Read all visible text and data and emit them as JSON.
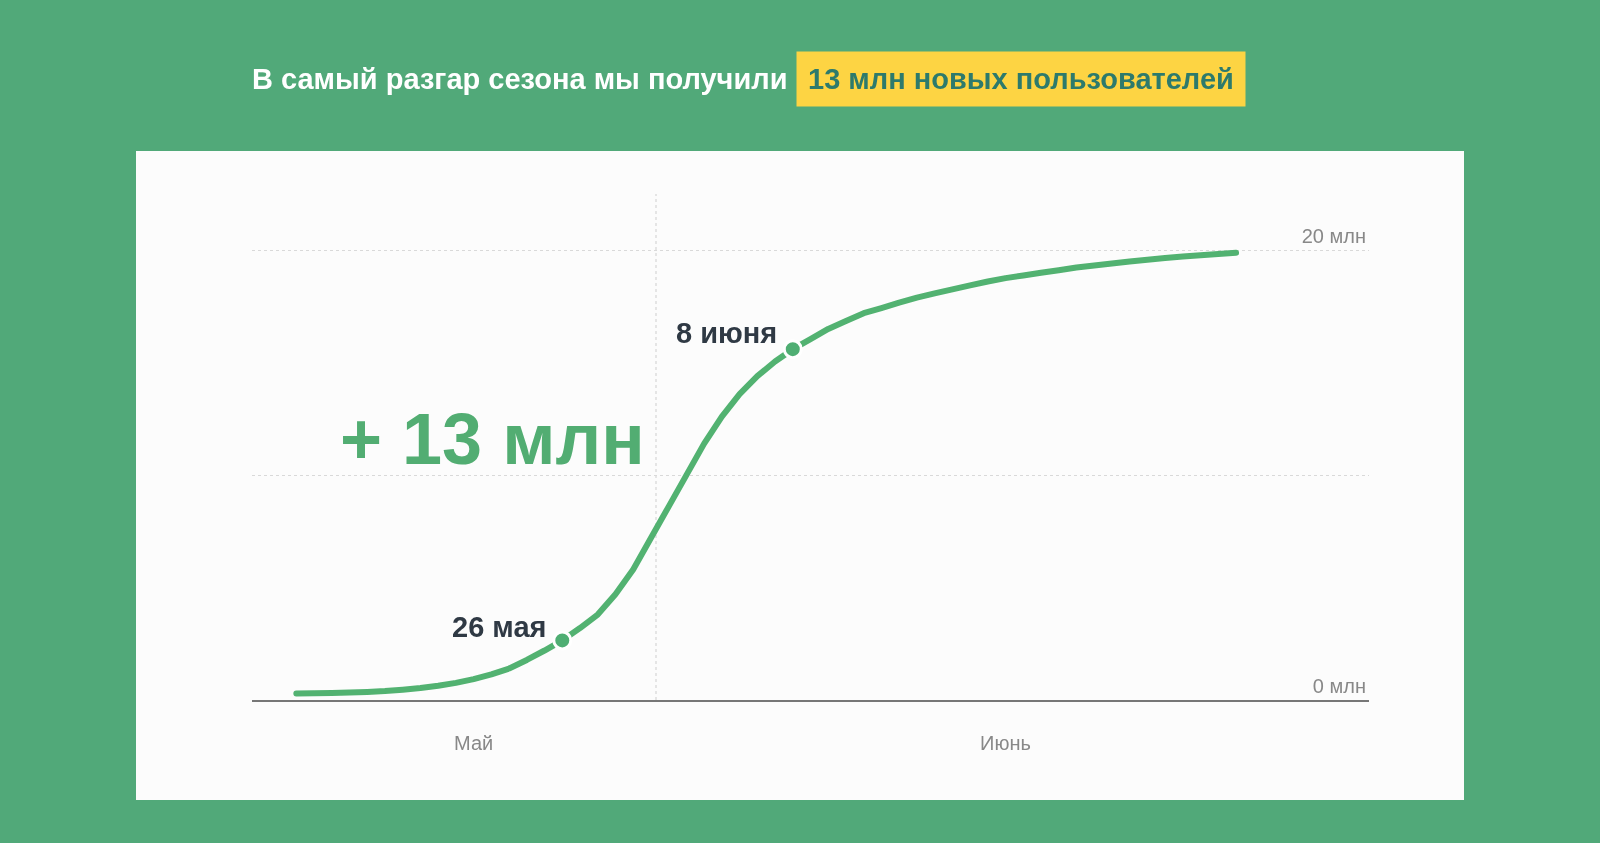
{
  "chart_data": {
    "type": "line",
    "title": "В самый разгар сезона мы получили",
    "subtitle": "13 млн новых пользователей",
    "categories": [
      null,
      null,
      null,
      null,
      null,
      null,
      null,
      null,
      null,
      null,
      null,
      null,
      "Май",
      null,
      null,
      null,
      null,
      null,
      null,
      null,
      null,
      null,
      null,
      null,
      null,
      null,
      null,
      null,
      null,
      null,
      null,
      null,
      null,
      null,
      null,
      null,
      null,
      null,
      null,
      null,
      null,
      null,
      "Июнь",
      null,
      null,
      null,
      null,
      null,
      null,
      null,
      null,
      null,
      null,
      null,
      null,
      null,
      null,
      null,
      null,
      null,
      null,
      null,
      null
    ],
    "ylim": [
      0,
      22.5
    ],
    "yticks": [
      {
        "value": 0,
        "label": "0 млн"
      },
      {
        "value": 10,
        "label": null
      },
      {
        "value": 20,
        "label": "20 млн"
      }
    ],
    "grid": "y",
    "series": [
      {
        "color": "#52b271",
        "marker": "none",
        "values": [
          null,
          null,
          0.29,
          0.3,
          0.31,
          0.33,
          0.36,
          0.4,
          0.46,
          0.53,
          0.63,
          0.76,
          0.93,
          1.14,
          1.4,
          1.78,
          2.2,
          2.65,
          3.2,
          3.8,
          4.7,
          5.8,
          7.2,
          8.6,
          10.0,
          11.4,
          12.6,
          13.6,
          14.4,
          15.05,
          15.6,
          16.05,
          16.5,
          16.85,
          17.2,
          17.43,
          17.67,
          17.89,
          18.08,
          18.26,
          18.44,
          18.61,
          18.76,
          18.88,
          19.0,
          19.11,
          19.23,
          19.32,
          19.41,
          19.5,
          19.58,
          19.65,
          19.72,
          19.78,
          19.83,
          19.89,
          null,
          null,
          null,
          null,
          null,
          null,
          null
        ]
      },
      {
        "type": "scatter",
        "color": "#4fae73",
        "marker": "circle",
        "values": [
          null,
          null,
          null,
          null,
          null,
          null,
          null,
          null,
          null,
          null,
          null,
          null,
          null,
          null,
          null,
          null,
          null,
          2.65,
          null,
          null,
          null,
          null,
          null,
          null,
          null,
          null,
          null,
          null,
          null,
          null,
          15.6,
          null,
          null,
          null,
          null,
          null,
          null,
          null,
          null,
          null,
          null,
          null,
          null,
          null,
          null,
          null,
          null,
          null,
          null,
          null,
          null,
          null,
          null,
          null,
          null,
          null,
          null,
          null,
          null,
          null,
          null,
          null,
          null
        ]
      }
    ],
    "annotations": [
      "26 мая",
      "8 июня",
      "+ 13 млн"
    ]
  }
}
